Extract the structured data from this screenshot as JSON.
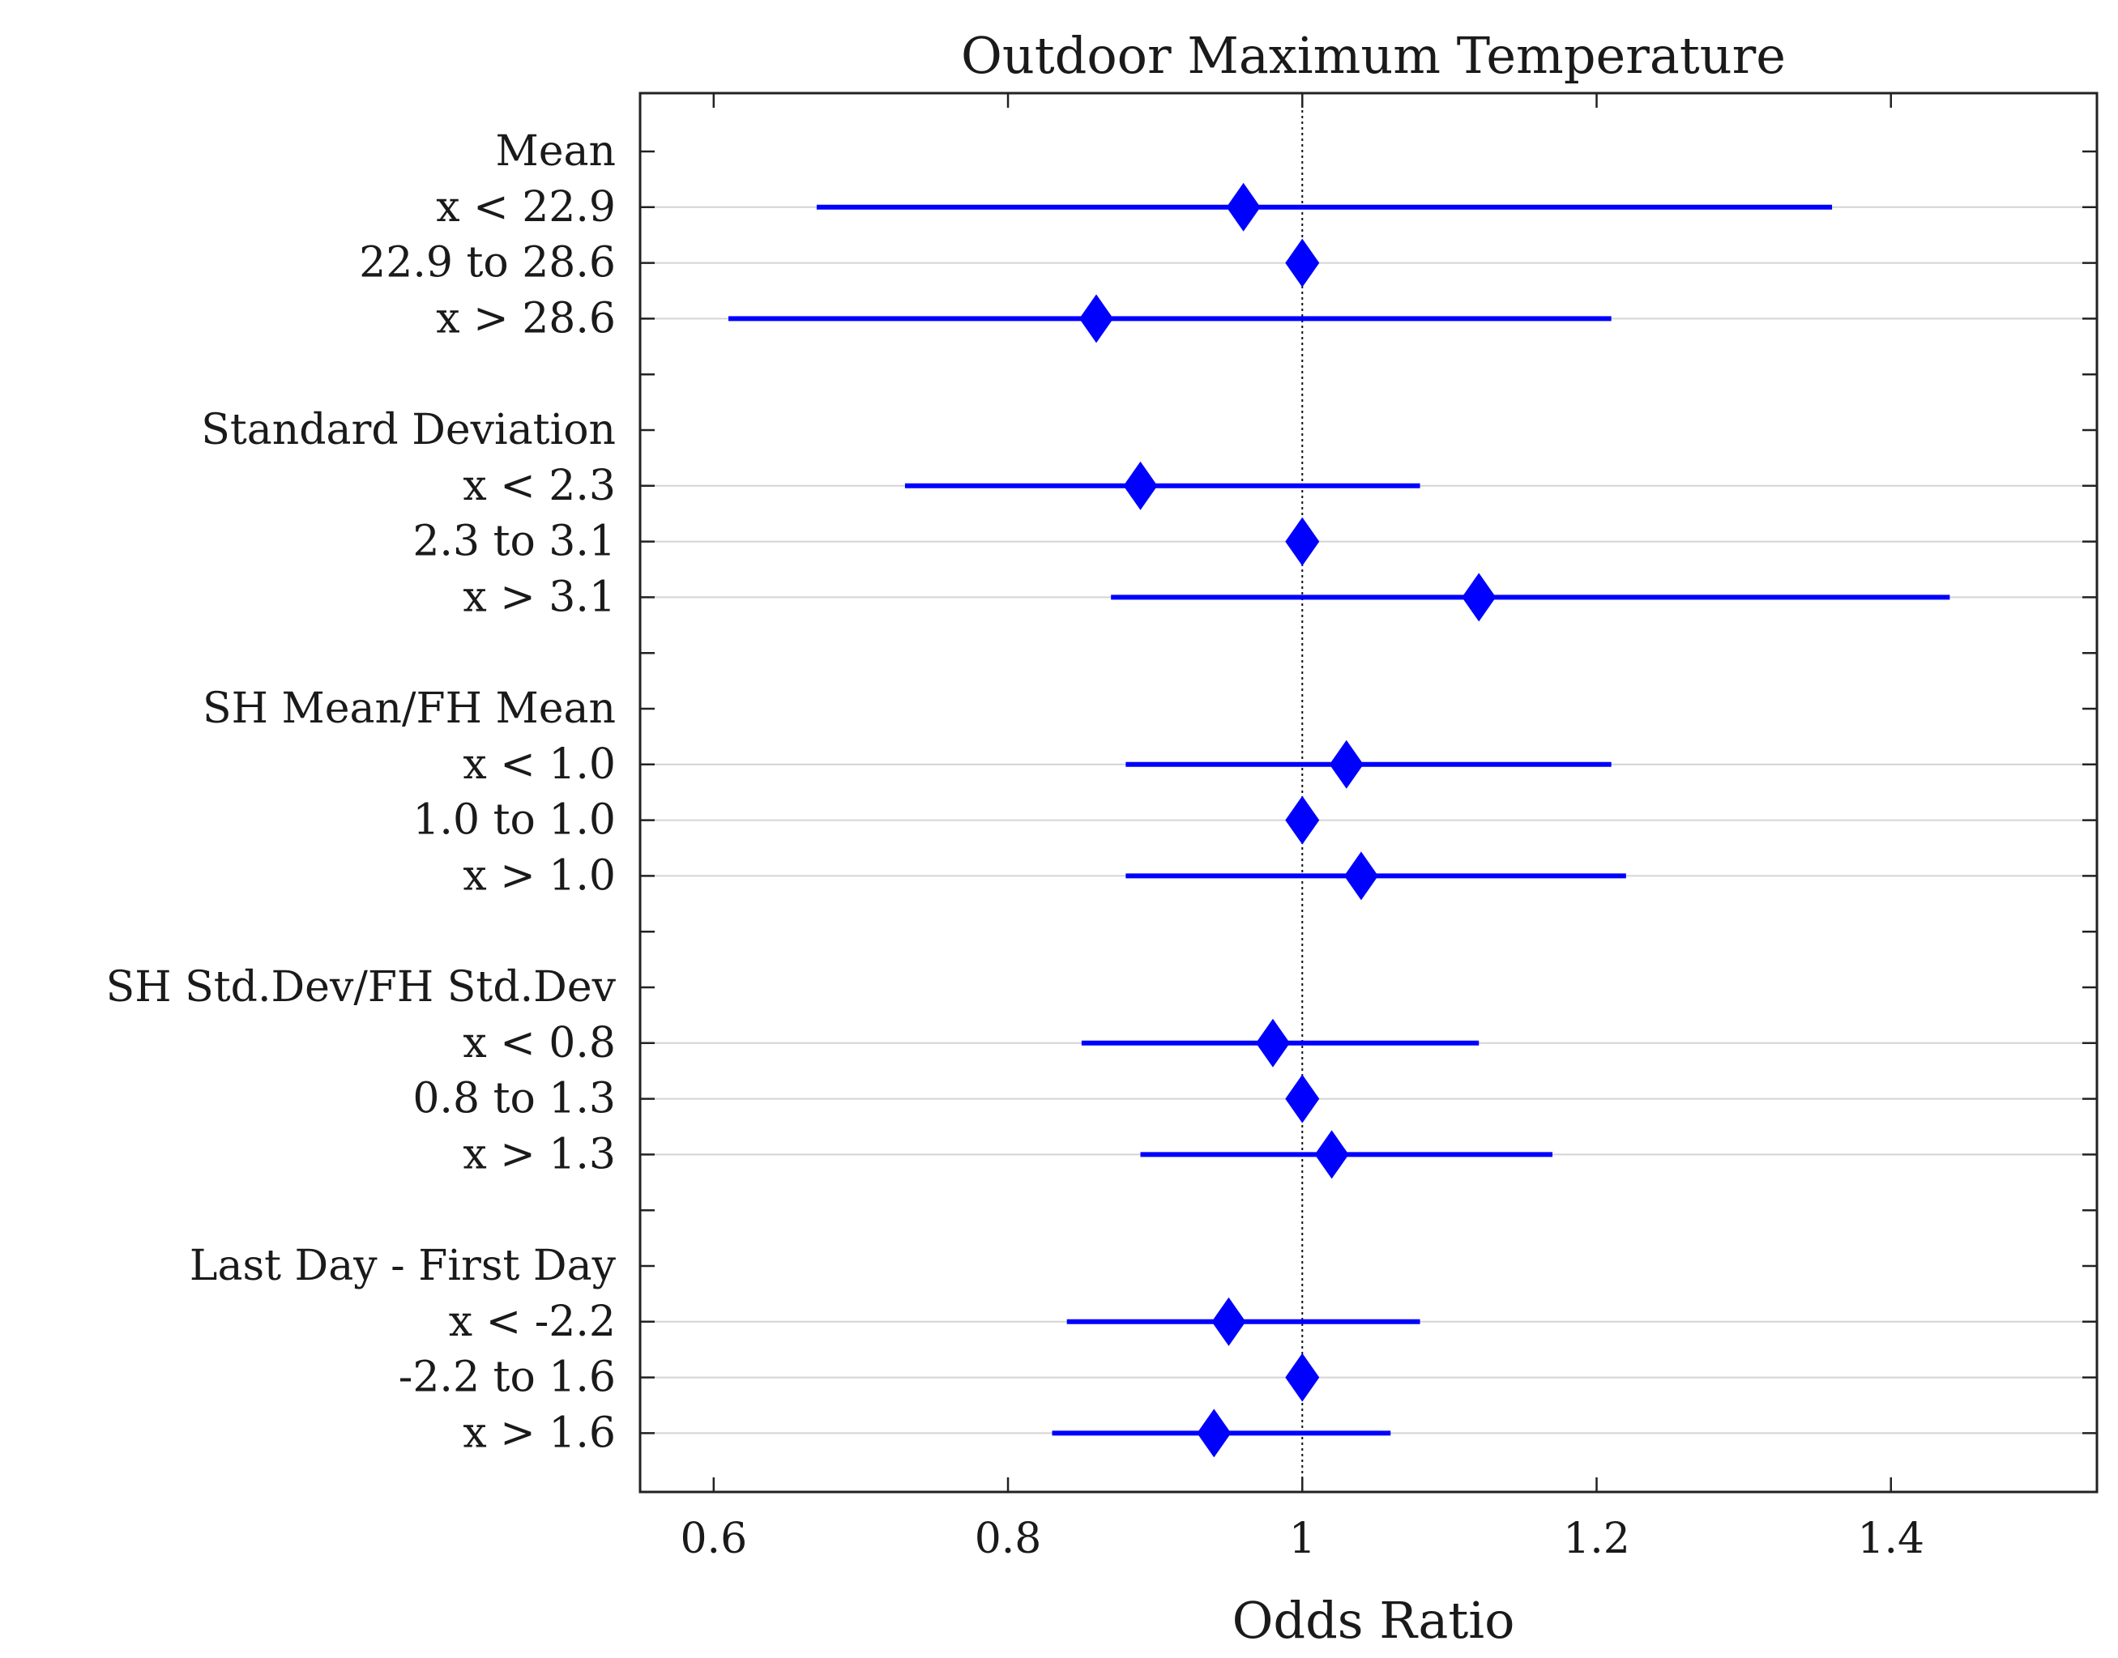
{
  "chart_data": {
    "type": "forest",
    "title": "Outdoor Maximum Temperature",
    "xlabel": "Odds Ratio",
    "xlim": [
      0.55,
      1.54
    ],
    "xticks": [
      0.6,
      0.8,
      1,
      1.2,
      1.4
    ],
    "xtick_labels": [
      "0.6",
      "0.8",
      "1",
      "1.2",
      "1.4"
    ],
    "reference_line": 1,
    "series_color": "#0000ff",
    "rows": [
      {
        "label": "Mean",
        "header": true
      },
      {
        "label": "x < 22.9",
        "or": 0.96,
        "lo": 0.67,
        "hi": 1.36
      },
      {
        "label": "22.9 to 28.6",
        "or": 1.0,
        "lo": 1.0,
        "hi": 1.0
      },
      {
        "label": "x > 28.6",
        "or": 0.86,
        "lo": 0.61,
        "hi": 1.21
      },
      {
        "label": "",
        "blank": true
      },
      {
        "label": "Standard Deviation",
        "header": true
      },
      {
        "label": "x < 2.3",
        "or": 0.89,
        "lo": 0.73,
        "hi": 1.08
      },
      {
        "label": "2.3 to 3.1",
        "or": 1.0,
        "lo": 1.0,
        "hi": 1.0
      },
      {
        "label": "x > 3.1",
        "or": 1.12,
        "lo": 0.87,
        "hi": 1.44
      },
      {
        "label": "",
        "blank": true
      },
      {
        "label": "SH Mean/FH Mean",
        "header": true
      },
      {
        "label": "x < 1.0",
        "or": 1.03,
        "lo": 0.88,
        "hi": 1.21
      },
      {
        "label": "1.0 to 1.0",
        "or": 1.0,
        "lo": 1.0,
        "hi": 1.0
      },
      {
        "label": "x > 1.0",
        "or": 1.04,
        "lo": 0.88,
        "hi": 1.22
      },
      {
        "label": "",
        "blank": true
      },
      {
        "label": "SH Std.Dev/FH Std.Dev",
        "header": true
      },
      {
        "label": "x < 0.8",
        "or": 0.98,
        "lo": 0.85,
        "hi": 1.12
      },
      {
        "label": "0.8 to 1.3",
        "or": 1.0,
        "lo": 1.0,
        "hi": 1.0
      },
      {
        "label": "x > 1.3",
        "or": 1.02,
        "lo": 0.89,
        "hi": 1.17
      },
      {
        "label": "",
        "blank": true
      },
      {
        "label": "Last Day - First Day",
        "header": true
      },
      {
        "label": "x < -2.2",
        "or": 0.95,
        "lo": 0.84,
        "hi": 1.08
      },
      {
        "label": "-2.2 to 1.6",
        "or": 1.0,
        "lo": 1.0,
        "hi": 1.0
      },
      {
        "label": "x > 1.6",
        "or": 0.94,
        "lo": 0.83,
        "hi": 1.06
      }
    ]
  }
}
